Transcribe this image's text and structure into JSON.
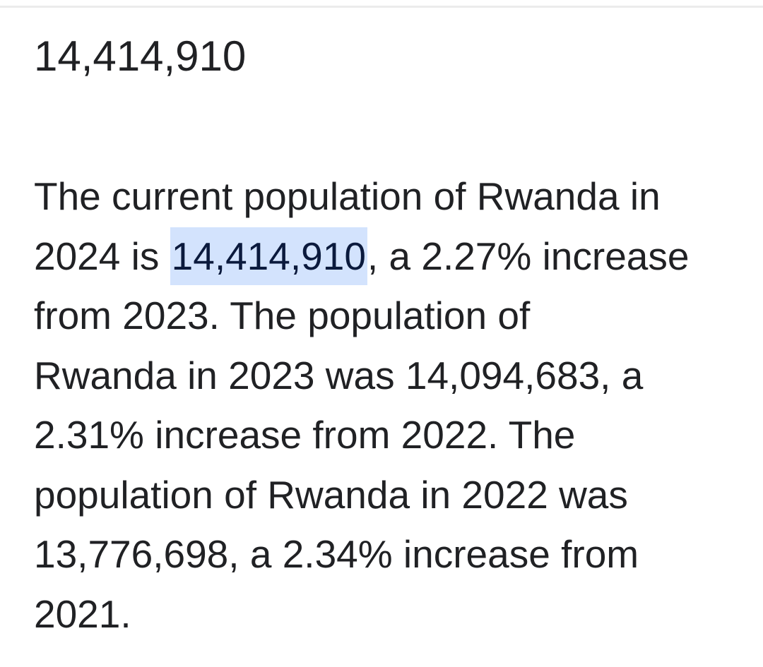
{
  "headline": "14,414,910",
  "paragraph": {
    "lines": [
      {
        "text": "The current population of Rwanda in"
      },
      {
        "before": "2024 is ",
        "highlight": "14,414,910",
        "after": ", a 2.27% increase"
      },
      {
        "text": "from 2023. The population of"
      },
      {
        "text": "Rwanda in 2023 was 14,094,683, a"
      },
      {
        "text": "2.31% increase from 2022. The"
      },
      {
        "text": "population of Rwanda in 2022 was"
      },
      {
        "text": "13,776,698, a 2.34% increase from"
      },
      {
        "text": "2021."
      }
    ]
  }
}
